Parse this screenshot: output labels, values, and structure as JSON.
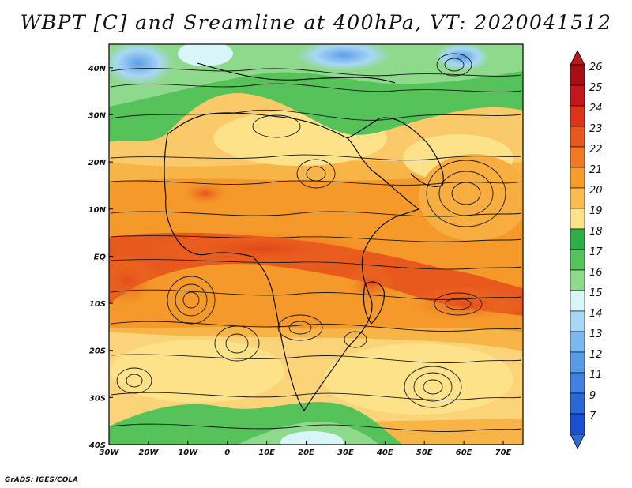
{
  "title": "WBPT [C] and Sreamline at 400hPa, VT: 2020041512",
  "credit": "GrADS: IGES/COLA",
  "map": {
    "lon_min": -30,
    "lon_max": 75,
    "lat_min": -40,
    "lat_max": 45,
    "lon_ticks": [
      {
        "value": -30,
        "label": "30W"
      },
      {
        "value": -20,
        "label": "20W"
      },
      {
        "value": -10,
        "label": "10W"
      },
      {
        "value": 0,
        "label": "0"
      },
      {
        "value": 10,
        "label": "10E"
      },
      {
        "value": 20,
        "label": "20E"
      },
      {
        "value": 30,
        "label": "30E"
      },
      {
        "value": 40,
        "label": "40E"
      },
      {
        "value": 50,
        "label": "50E"
      },
      {
        "value": 60,
        "label": "60E"
      },
      {
        "value": 70,
        "label": "70E"
      }
    ],
    "lat_ticks": [
      {
        "value": 40,
        "label": "40N"
      },
      {
        "value": 30,
        "label": "30N"
      },
      {
        "value": 20,
        "label": "20N"
      },
      {
        "value": 10,
        "label": "10N"
      },
      {
        "value": 0,
        "label": "EQ"
      },
      {
        "value": -10,
        "label": "10S"
      },
      {
        "value": -20,
        "label": "20S"
      },
      {
        "value": -30,
        "label": "30S"
      },
      {
        "value": -40,
        "label": "40S"
      }
    ]
  },
  "colorbar": {
    "levels": [
      {
        "label": "26",
        "color": "#a50f15"
      },
      {
        "label": "25",
        "color": "#c4161c"
      },
      {
        "label": "24",
        "color": "#dc3418"
      },
      {
        "label": "23",
        "color": "#e9561e"
      },
      {
        "label": "22",
        "color": "#f07a22"
      },
      {
        "label": "21",
        "color": "#f59d2b"
      },
      {
        "label": "20",
        "color": "#f9bc4d"
      },
      {
        "label": "19",
        "color": "#fde28a"
      },
      {
        "label": "18",
        "color": "#2eae49"
      },
      {
        "label": "17",
        "color": "#55c25a"
      },
      {
        "label": "16",
        "color": "#8fd98c"
      },
      {
        "label": "15",
        "color": "#d8f6f7"
      },
      {
        "label": "14",
        "color": "#a8d7f5"
      },
      {
        "label": "13",
        "color": "#7ab8ee"
      },
      {
        "label": "12",
        "color": "#5a9be6"
      },
      {
        "label": "11",
        "color": "#3f80e0"
      },
      {
        "label": "9",
        "color": "#2a68d6"
      },
      {
        "label": "7",
        "color": "#1a4fd0"
      }
    ],
    "top_color": "#b51d1d",
    "bottom_color": "#2e6cd8"
  }
}
